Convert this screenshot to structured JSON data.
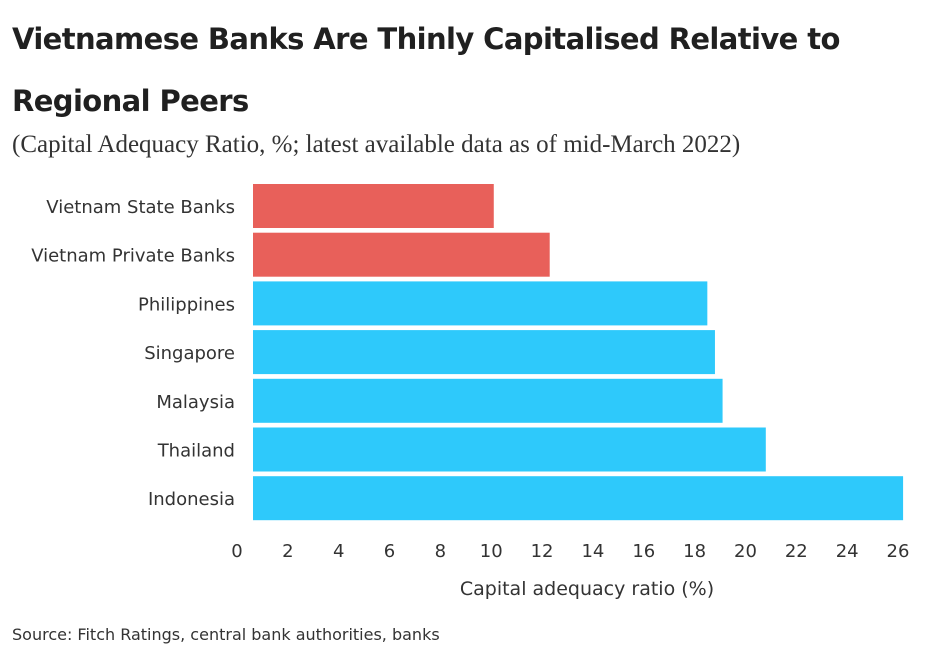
{
  "chart_data": {
    "type": "bar",
    "orientation": "horizontal",
    "title": "Vietnamese Banks Are Thinly Capitalised Relative to Regional Peers",
    "subtitle": "(Capital Adequacy Ratio, %; latest available data as of mid-March 2022)",
    "xlabel": "Capital adequacy ratio (%)",
    "ylabel": "",
    "categories": [
      "Vietnam State Banks",
      "Vietnam Private Banks",
      "Philippines",
      "Singapore",
      "Malaysia",
      "Thailand",
      "Indonesia"
    ],
    "values": [
      10.1,
      12.3,
      18.5,
      18.8,
      19.1,
      20.8,
      26.2
    ],
    "bar_colors": [
      "#e8605a",
      "#e8605a",
      "#2ec9fb",
      "#2ec9fb",
      "#2ec9fb",
      "#2ec9fb",
      "#2ec9fb"
    ],
    "xlim": [
      0,
      26
    ],
    "xticks": [
      "0",
      "2",
      "4",
      "6",
      "8",
      "10",
      "12",
      "14",
      "16",
      "18",
      "20",
      "22",
      "24",
      "26"
    ],
    "grid": false,
    "legend": "none",
    "source": "Source: Fitch Ratings, central bank authorities, banks"
  }
}
